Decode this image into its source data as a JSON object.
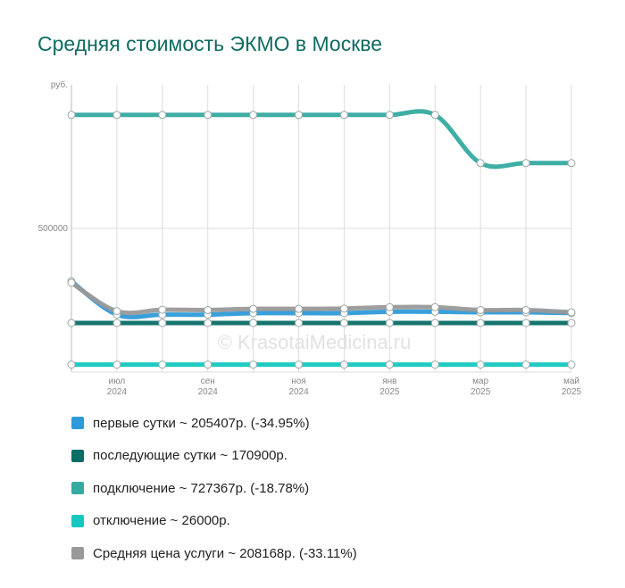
{
  "title": "Средняя стоимость ЭКМО в Москве",
  "watermark": "© KrasotaiMedicina.ru",
  "chart_data": {
    "type": "line",
    "title": "Средняя стоимость ЭКМО в Москве",
    "ylabel": "руб.",
    "xlabel": "",
    "ylim": [
      0,
      1000000
    ],
    "y_ticks": [
      {
        "value": 500000,
        "label": "500000"
      }
    ],
    "x": [
      0,
      1,
      2,
      3,
      4,
      5,
      6,
      7,
      8,
      9,
      10,
      11
    ],
    "x_ticks": [
      {
        "x": 1,
        "month": "июл",
        "year": "2024"
      },
      {
        "x": 3,
        "month": "сен",
        "year": "2024"
      },
      {
        "x": 5,
        "month": "ноя",
        "year": "2024"
      },
      {
        "x": 7,
        "month": "янв",
        "year": "2025"
      },
      {
        "x": 9,
        "month": "мар",
        "year": "2025"
      },
      {
        "x": 11,
        "month": "май",
        "year": "2025"
      }
    ],
    "grid": true,
    "legend_position": "bottom",
    "series": [
      {
        "name": "первые сутки",
        "color": "#2e9bd9",
        "values": [
          316000,
          200000,
          200000,
          200000,
          205000,
          205000,
          205000,
          210000,
          210000,
          208000,
          208000,
          205407
        ]
      },
      {
        "name": "последующие сутки",
        "color": "#0a6d66",
        "values": [
          170900,
          170900,
          170900,
          170900,
          170900,
          170900,
          170900,
          170900,
          170900,
          170900,
          170900,
          170900
        ]
      },
      {
        "name": "подключение",
        "color": "#35aaa0",
        "values": [
          895000,
          895000,
          895000,
          895000,
          895000,
          895000,
          895000,
          895000,
          895000,
          727367,
          727367,
          727367
        ]
      },
      {
        "name": "отключение",
        "color": "#14c8c0",
        "values": [
          26000,
          26000,
          26000,
          26000,
          26000,
          26000,
          26000,
          26000,
          26000,
          26000,
          26000,
          26000
        ]
      },
      {
        "name": "Средняя цена услуги",
        "color": "#999999",
        "values": [
          311000,
          212000,
          217000,
          216000,
          220000,
          220000,
          221000,
          226000,
          226000,
          216000,
          216000,
          208168
        ]
      }
    ]
  },
  "legend": [
    {
      "label": "первые сутки ~ 205407р. (-34.95%)",
      "color": "#2e9bd9"
    },
    {
      "label": "последующие сутки ~ 170900р.",
      "color": "#0a6d66"
    },
    {
      "label": "подключение ~ 727367р. (-18.78%)",
      "color": "#35aaa0"
    },
    {
      "label": "отключение ~ 26000р.",
      "color": "#14c8c0"
    },
    {
      "label": "Средняя цена услуги ~ 208168р. (-33.11%)",
      "color": "#999999"
    }
  ]
}
